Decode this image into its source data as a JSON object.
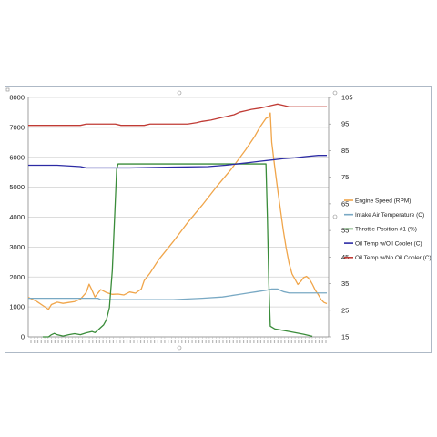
{
  "chart_data": {
    "type": "line",
    "title": "",
    "xlabel": "",
    "ylabel": "",
    "y_left": {
      "min": 0,
      "max": 8000,
      "ticks": [
        0,
        1000,
        2000,
        3000,
        4000,
        5000,
        6000,
        7000,
        8000
      ]
    },
    "y_right": {
      "min": 15,
      "max": 105,
      "ticks": [
        15,
        25,
        35,
        45,
        55,
        65,
        75,
        85,
        95,
        105
      ]
    },
    "x": {
      "min": 0,
      "max": 100
    },
    "grid": "horizontal only",
    "legend_position": "right",
    "series": [
      {
        "name": "Engine Speed (RPM)",
        "axis": "left",
        "color": "#f0a54a",
        "points": [
          [
            0,
            1320
          ],
          [
            3,
            1180
          ],
          [
            5,
            1050
          ],
          [
            7,
            920
          ],
          [
            8,
            1080
          ],
          [
            10,
            1160
          ],
          [
            12,
            1120
          ],
          [
            14,
            1150
          ],
          [
            16,
            1180
          ],
          [
            18,
            1260
          ],
          [
            20,
            1480
          ],
          [
            21,
            1760
          ],
          [
            22,
            1560
          ],
          [
            23,
            1330
          ],
          [
            25,
            1580
          ],
          [
            27,
            1480
          ],
          [
            29,
            1420
          ],
          [
            31,
            1430
          ],
          [
            33,
            1400
          ],
          [
            35,
            1500
          ],
          [
            37,
            1460
          ],
          [
            39,
            1600
          ],
          [
            40,
            1880
          ],
          [
            42,
            2130
          ],
          [
            45,
            2580
          ],
          [
            50,
            3180
          ],
          [
            55,
            3820
          ],
          [
            60,
            4400
          ],
          [
            65,
            5020
          ],
          [
            70,
            5600
          ],
          [
            75,
            6250
          ],
          [
            78,
            6680
          ],
          [
            80,
            7020
          ],
          [
            82,
            7300
          ],
          [
            83,
            7350
          ],
          [
            83.5,
            7480
          ],
          [
            84,
            6500
          ],
          [
            85,
            5700
          ],
          [
            86,
            4950
          ],
          [
            87,
            4250
          ],
          [
            88,
            3550
          ],
          [
            89,
            2950
          ],
          [
            90,
            2450
          ],
          [
            91,
            2100
          ],
          [
            92,
            1930
          ],
          [
            93,
            1750
          ],
          [
            94,
            1850
          ],
          [
            95,
            1980
          ],
          [
            96,
            2020
          ],
          [
            97,
            1930
          ],
          [
            98,
            1760
          ],
          [
            99,
            1560
          ],
          [
            100,
            1420
          ],
          [
            101,
            1250
          ],
          [
            102,
            1150
          ],
          [
            103,
            1110
          ]
        ]
      },
      {
        "name": "Intake Air Temperature (C)",
        "axis": "right",
        "color": "#79a9c4",
        "points": [
          [
            0,
            29.5
          ],
          [
            24,
            29.5
          ],
          [
            25,
            29.0
          ],
          [
            50,
            29.0
          ],
          [
            60,
            29.5
          ],
          [
            67,
            30.0
          ],
          [
            70,
            30.5
          ],
          [
            73,
            31.0
          ],
          [
            76,
            31.5
          ],
          [
            79,
            32.0
          ],
          [
            82,
            32.5
          ],
          [
            84,
            33.0
          ],
          [
            86,
            33.0
          ],
          [
            87,
            32.5
          ],
          [
            88,
            32.0
          ],
          [
            90,
            31.5
          ],
          [
            103,
            31.5
          ]
        ]
      },
      {
        "name": "Throttle Position #1 (%)",
        "axis": "right",
        "color": "#3a8c3a",
        "points": [
          [
            5,
            15
          ],
          [
            7,
            15
          ],
          [
            8,
            15.8
          ],
          [
            9,
            16.3
          ],
          [
            10,
            15.8
          ],
          [
            12,
            15.3
          ],
          [
            14,
            15.8
          ],
          [
            16,
            16.2
          ],
          [
            18,
            15.8
          ],
          [
            20,
            16.5
          ],
          [
            22,
            17.0
          ],
          [
            23,
            16.6
          ],
          [
            24,
            17.5
          ],
          [
            25,
            18.5
          ],
          [
            26,
            19.5
          ],
          [
            27,
            21.5
          ],
          [
            28,
            26.0
          ],
          [
            29,
            40.0
          ],
          [
            30,
            65.0
          ],
          [
            30.5,
            78.0
          ],
          [
            31,
            80.0
          ],
          [
            82,
            80.0
          ],
          [
            82.5,
            60.0
          ],
          [
            83,
            35.0
          ],
          [
            83.5,
            19.0
          ],
          [
            85,
            18.0
          ],
          [
            90,
            17.0
          ],
          [
            95,
            16.0
          ],
          [
            98,
            15.2
          ]
        ]
      },
      {
        "name": "Oil Temp w/Oil Cooler (C)",
        "axis": "right",
        "color": "#2c2ba4",
        "points": [
          [
            0,
            79.5
          ],
          [
            10,
            79.5
          ],
          [
            18,
            79.0
          ],
          [
            20,
            78.5
          ],
          [
            35,
            78.5
          ],
          [
            50,
            78.8
          ],
          [
            62,
            79.0
          ],
          [
            68,
            79.5
          ],
          [
            72,
            80.0
          ],
          [
            76,
            80.5
          ],
          [
            80,
            81.0
          ],
          [
            84,
            81.5
          ],
          [
            88,
            82.0
          ],
          [
            92,
            82.3
          ],
          [
            96,
            82.8
          ],
          [
            100,
            83.2
          ],
          [
            103,
            83.2
          ]
        ]
      },
      {
        "name": "Oil Temp w/No Oil Cooler (C)",
        "axis": "right",
        "color": "#c03b35",
        "points": [
          [
            0,
            94.5
          ],
          [
            18,
            94.5
          ],
          [
            20,
            95.0
          ],
          [
            30,
            95.0
          ],
          [
            32,
            94.5
          ],
          [
            40,
            94.5
          ],
          [
            42,
            95.0
          ],
          [
            55,
            95.0
          ],
          [
            58,
            95.5
          ],
          [
            60,
            96.0
          ],
          [
            63,
            96.5
          ],
          [
            65,
            97.0
          ],
          [
            67,
            97.5
          ],
          [
            69,
            98.0
          ],
          [
            71,
            98.5
          ],
          [
            73,
            99.5
          ],
          [
            75,
            100.0
          ],
          [
            77,
            100.5
          ],
          [
            80,
            101.0
          ],
          [
            82,
            101.5
          ],
          [
            84,
            102.0
          ],
          [
            86,
            102.5
          ],
          [
            88,
            102.0
          ],
          [
            90,
            101.5
          ],
          [
            103,
            101.5
          ]
        ]
      }
    ]
  }
}
